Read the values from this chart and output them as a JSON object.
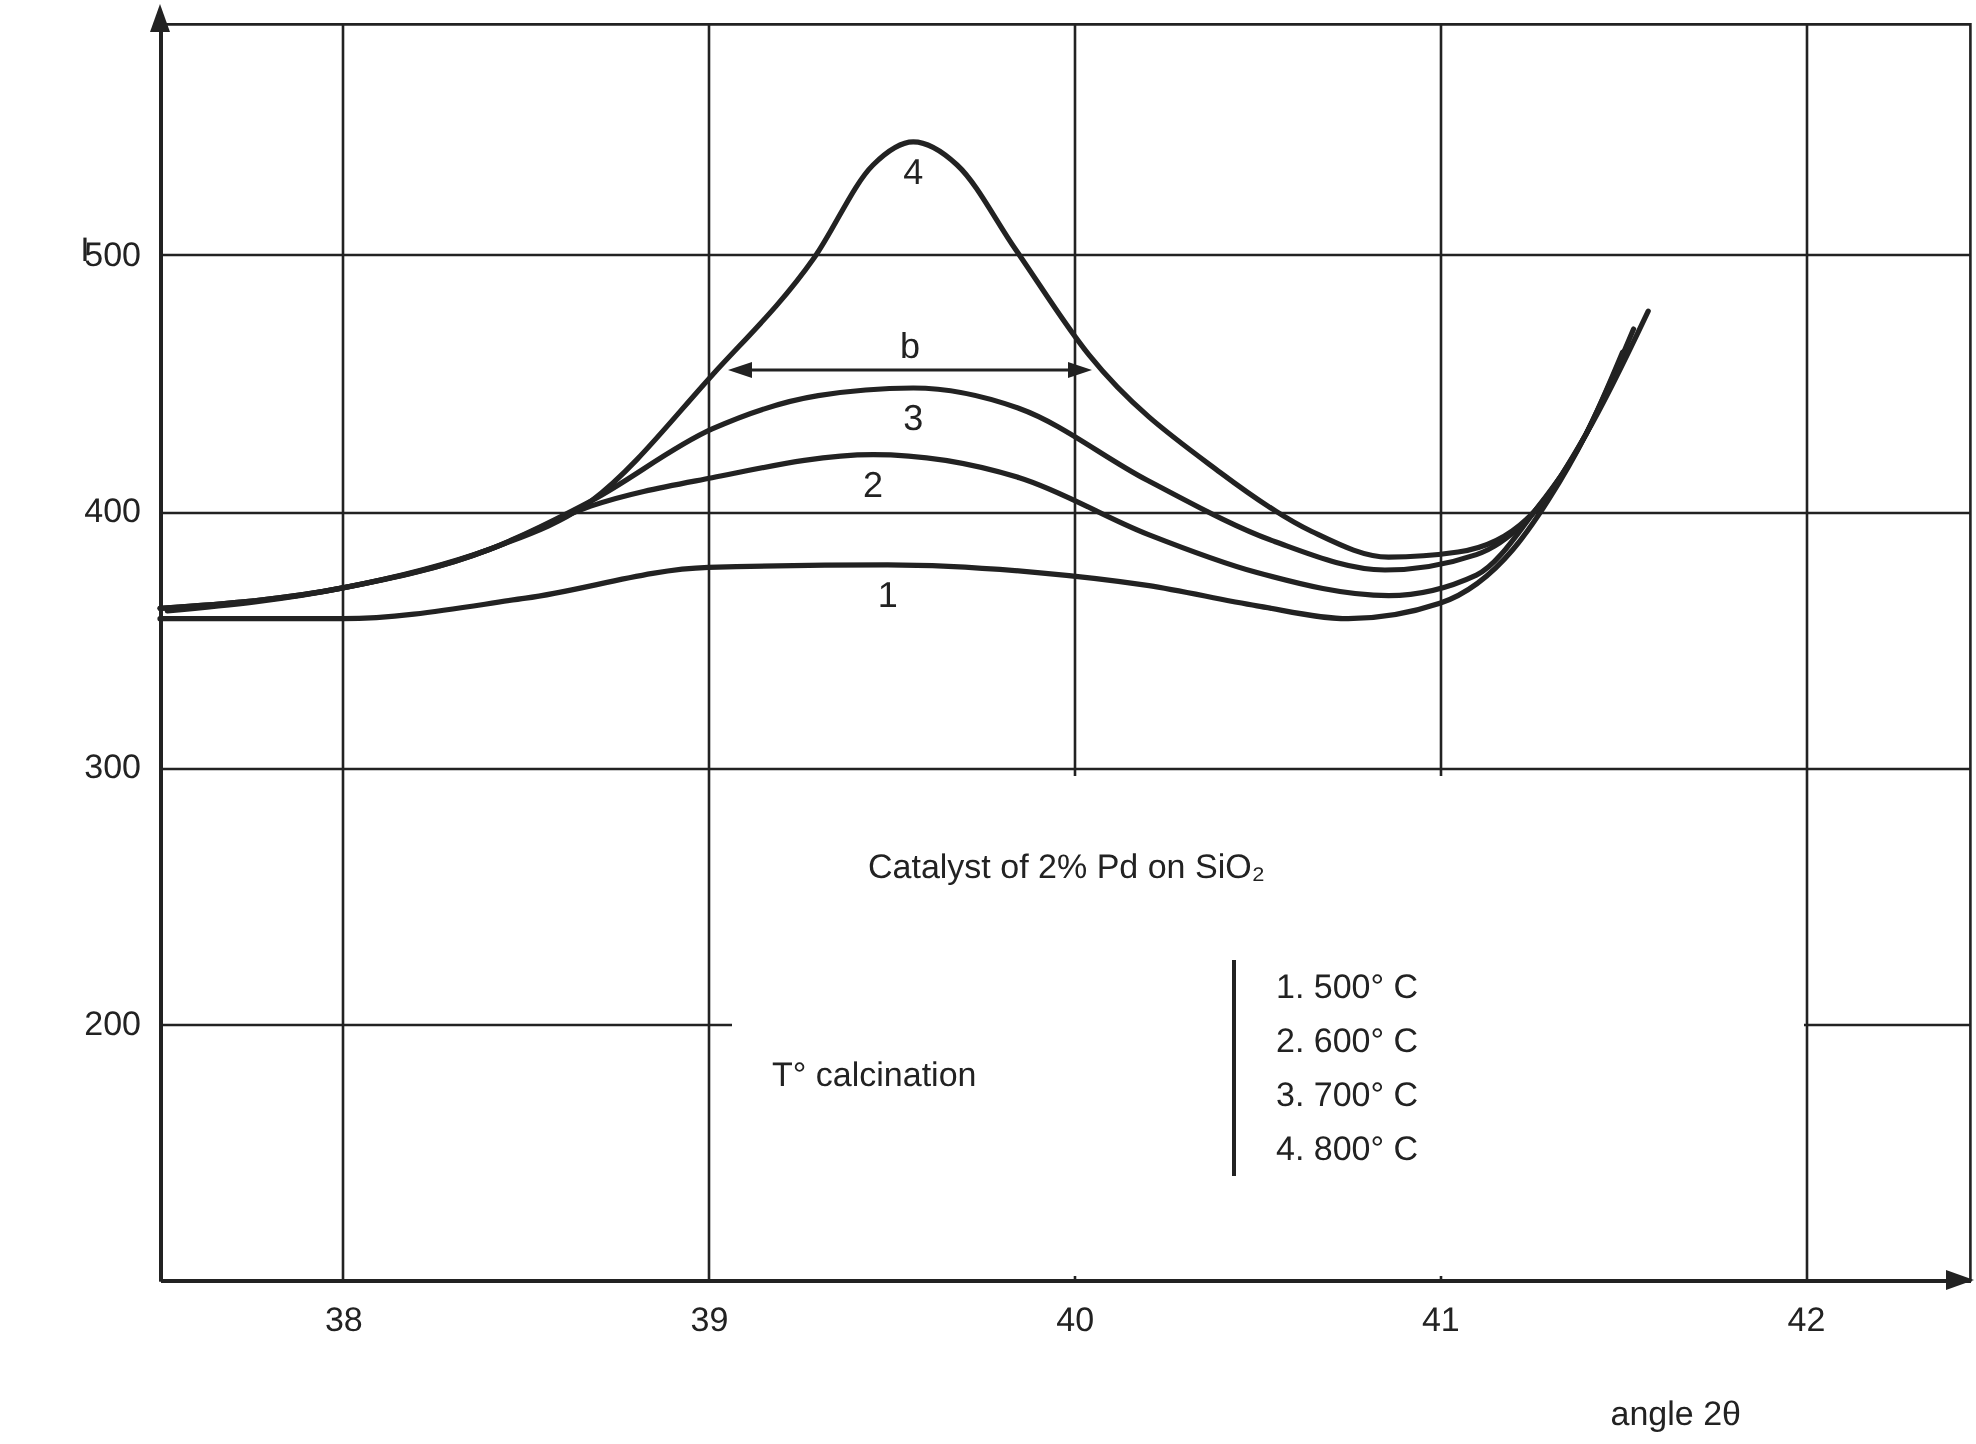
{
  "chart_data": {
    "type": "line",
    "xlabel": "angle   2θ",
    "ylabel": "I",
    "xlim": [
      37.5,
      42.45
    ],
    "ylim": [
      100,
      590
    ],
    "xticks": [
      38,
      39,
      40,
      41,
      42
    ],
    "yticks": [
      200,
      300,
      400,
      500
    ],
    "grid": true,
    "marker": "none",
    "line_style": "solid",
    "series": [
      {
        "name": "1",
        "color": "#222222",
        "x": [
          37.5,
          38,
          38.5,
          39,
          39.49,
          39.9,
          40.2,
          40.5,
          40.75,
          41,
          41.2,
          41.3,
          41.4,
          41.5
        ],
        "values": [
          358,
          358,
          366,
          378,
          379,
          376,
          371,
          363,
          358,
          364,
          385,
          405,
          430,
          461
        ]
      },
      {
        "name": "2",
        "color": "#222222",
        "x": [
          37.5,
          38,
          38.4,
          38.68,
          39.01,
          39.45,
          39.85,
          40.2,
          40.5,
          40.86,
          41.1,
          41.26,
          41.4,
          41.5
        ],
        "values": [
          362,
          370,
          385,
          402,
          413,
          422,
          413,
          391,
          376,
          367,
          375,
          400,
          430,
          462
        ]
      },
      {
        "name": "3",
        "color": "#222222",
        "x": [
          37.52,
          38,
          38.4,
          38.68,
          39.01,
          39.3,
          39.56,
          39.85,
          40.2,
          40.55,
          40.85,
          41.1,
          41.26,
          41.4,
          41.53
        ],
        "values": [
          361,
          370,
          385,
          404,
          432,
          445,
          448,
          440,
          412,
          388,
          377,
          383,
          400,
          430,
          471
        ]
      },
      {
        "name": "4",
        "color": "#222222",
        "x": [
          37.5,
          38,
          38.4,
          38.68,
          39.01,
          39.29,
          39.45,
          39.56,
          39.68,
          39.84,
          40.04,
          40.4,
          40.65,
          40.86,
          41.05,
          41.26,
          41.4,
          41.57
        ],
        "values": [
          362,
          370,
          385,
          404,
          453,
          499,
          535,
          544,
          535,
          502,
          461,
          415,
          392,
          382,
          384,
          400,
          430,
          478
        ]
      }
    ],
    "annotations": [
      "b",
      "Catalyst of 2% Pd on SiO₂",
      "T° calcination",
      "1. 500° C",
      "2. 600° C",
      "3. 700° C",
      "4. 800° C"
    ]
  }
}
